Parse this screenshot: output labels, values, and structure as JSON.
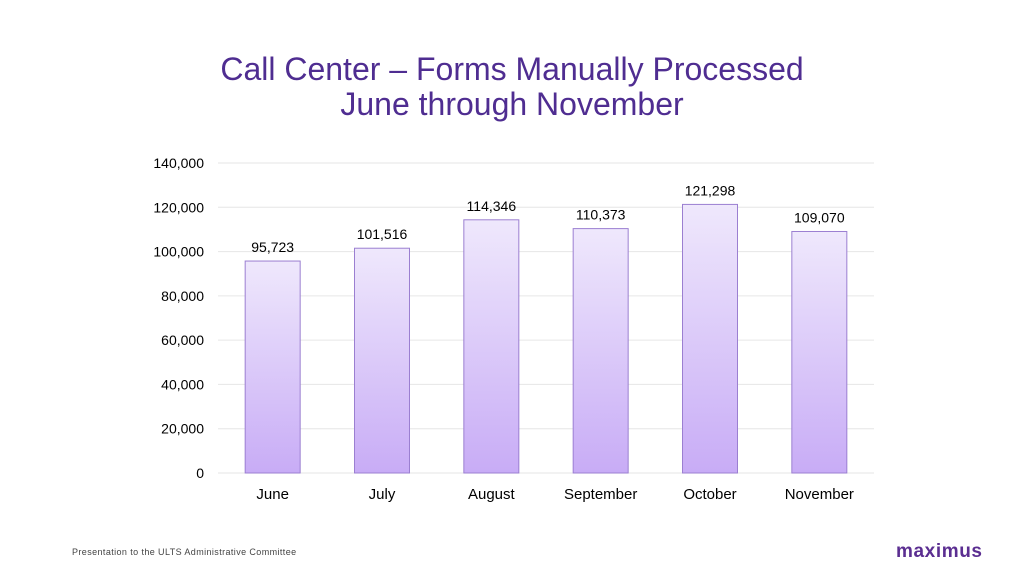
{
  "slide": {
    "title_line1": "Call Center – Forms Manually Processed",
    "title_line2": "June through November",
    "footer": "Presentation to the ULTS Administrative Committee",
    "logo_text": "maximus"
  },
  "colors": {
    "title": "#4f2d91",
    "bar_top": "#efe8fc",
    "bar_bottom": "#c8acf6",
    "bar_stroke": "#9b7fd1",
    "grid": "#e6e6e6",
    "text": "#000000",
    "logo": "#5b2e91"
  },
  "chart_data": {
    "type": "bar",
    "categories": [
      "June",
      "July",
      "August",
      "September",
      "October",
      "November"
    ],
    "values": [
      95723,
      101516,
      114346,
      110373,
      121298,
      109070
    ],
    "value_labels": [
      "95,723",
      "101,516",
      "114,346",
      "110,373",
      "121,298",
      "109,070"
    ],
    "yticks": [
      0,
      20000,
      40000,
      60000,
      80000,
      100000,
      120000,
      140000
    ],
    "ytick_labels": [
      "0",
      "20,000",
      "40,000",
      "60,000",
      "80,000",
      "100,000",
      "120,000",
      "140,000"
    ],
    "ylim": [
      0,
      140000
    ],
    "grid": true,
    "legend": "none"
  }
}
